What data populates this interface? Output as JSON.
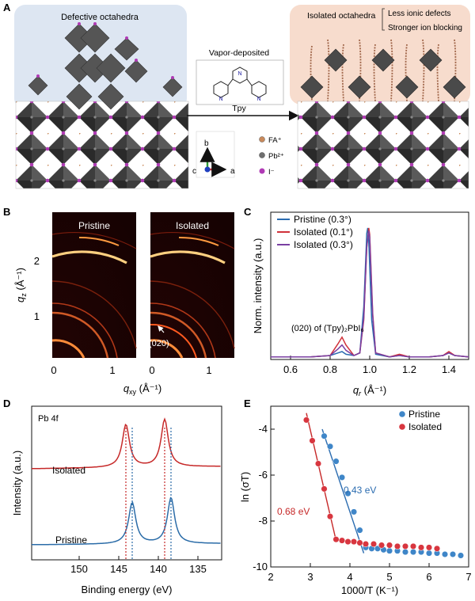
{
  "panels": {
    "A": {
      "label": "A",
      "left_title": "Defective octahedra",
      "center_title": "Vapor-deposited",
      "molecule_label": "Tpy",
      "right_title": "Isolated octahedra",
      "right_points": [
        "Less ionic defects",
        "Stronger ion blocking"
      ],
      "axes": {
        "b": "b",
        "c": "c",
        "a": "a"
      },
      "legend": [
        {
          "key": "fa",
          "label": "FA⁺",
          "color": "#c98a5b"
        },
        {
          "key": "pb",
          "label": "Pb²⁺",
          "color": "#6f6f6f"
        },
        {
          "key": "i",
          "label": "I⁻",
          "color": "#b03ab5"
        }
      ]
    },
    "B": {
      "label": "B",
      "left_title": "Pristine",
      "right_title": "Isolated",
      "peak_label": "(020)",
      "ylabel_main": "q",
      "ylabel_sub": "z",
      "ylabel_unit": " (Å⁻¹)",
      "xlabel_main": "q",
      "xlabel_sub": "xy",
      "xlabel_unit": " (Å⁻¹)",
      "y_ticks": [
        "2",
        "1"
      ],
      "x_ticks_left": [
        "0",
        "1"
      ],
      "x_ticks_right": [
        "0",
        "1"
      ]
    },
    "C": {
      "label": "C",
      "annotation": "(020) of (Tpy)₂PbI₆",
      "ylabel": "Norm. intensity (a.u.)",
      "xlabel_main": "q",
      "xlabel_sub": "r",
      "xlabel_unit": " (Å⁻¹)"
    },
    "D": {
      "label": "D",
      "inner_label": "Pb 4f",
      "ylabel": "Intensity (a.u.)",
      "xlabel": "Binding energy (eV)",
      "curve_labels": {
        "isolated": "Isolated",
        "pristine": "Pristine"
      }
    },
    "E": {
      "label": "E",
      "ylabel": "ln (σT)",
      "xlabel": "1000/T (K⁻¹)",
      "fit_labels": {
        "isolated": "0.68 eV",
        "pristine": "0.43 eV"
      }
    }
  },
  "chart_data": [
    {
      "type": "line",
      "panel": "C",
      "xlabel": "q_r (Å⁻¹)",
      "ylabel": "Norm. intensity (a.u.)",
      "xlim": [
        0.5,
        1.5
      ],
      "ylim": [
        0,
        1.12
      ],
      "x_ticks": [
        0.6,
        0.8,
        1.0,
        1.2,
        1.4
      ],
      "legend": "top-left",
      "series": [
        {
          "name": "Pristine (0.3°)",
          "color": "#2b6cb0",
          "x": [
            0.5,
            0.6,
            0.7,
            0.8,
            0.84,
            0.86,
            0.88,
            0.92,
            0.95,
            0.97,
            0.985,
            0.99,
            0.995,
            1.01,
            1.03,
            1.1,
            1.15,
            1.2,
            1.3,
            1.37,
            1.4,
            1.43,
            1.5
          ],
          "y": [
            0.02,
            0.02,
            0.02,
            0.03,
            0.05,
            0.06,
            0.04,
            0.03,
            0.05,
            0.4,
            0.96,
            1.0,
            0.9,
            0.3,
            0.04,
            0.02,
            0.03,
            0.02,
            0.02,
            0.03,
            0.05,
            0.03,
            0.02
          ]
        },
        {
          "name": "Isolated (0.1°)",
          "color": "#d0313a",
          "x": [
            0.5,
            0.6,
            0.7,
            0.8,
            0.84,
            0.86,
            0.88,
            0.92,
            0.95,
            0.97,
            0.985,
            0.995,
            1.0,
            1.015,
            1.03,
            1.1,
            1.15,
            1.2,
            1.3,
            1.37,
            1.4,
            1.43,
            1.5
          ],
          "y": [
            0.02,
            0.02,
            0.02,
            0.03,
            0.12,
            0.17,
            0.11,
            0.03,
            0.05,
            0.3,
            0.85,
            1.0,
            0.95,
            0.35,
            0.05,
            0.02,
            0.04,
            0.02,
            0.02,
            0.03,
            0.06,
            0.03,
            0.02
          ]
        },
        {
          "name": "Isolated (0.3°)",
          "color": "#7a3fa2",
          "x": [
            0.5,
            0.6,
            0.7,
            0.8,
            0.84,
            0.86,
            0.88,
            0.92,
            0.95,
            0.97,
            0.985,
            0.995,
            1.0,
            1.015,
            1.03,
            1.1,
            1.15,
            1.2,
            1.3,
            1.37,
            1.4,
            1.43,
            1.5
          ],
          "y": [
            0.02,
            0.02,
            0.02,
            0.03,
            0.08,
            0.11,
            0.07,
            0.03,
            0.05,
            0.32,
            0.86,
            0.98,
            0.93,
            0.33,
            0.05,
            0.02,
            0.03,
            0.02,
            0.02,
            0.03,
            0.05,
            0.03,
            0.02
          ]
        }
      ]
    },
    {
      "type": "line",
      "panel": "D",
      "xlabel": "Binding energy (eV)",
      "ylabel": "Intensity (a.u.)",
      "xlim": [
        156,
        132
      ],
      "x_ticks": [
        150,
        145,
        140,
        135
      ],
      "series": [
        {
          "name": "Isolated",
          "color": "#c62828",
          "peaks": [
            144.1,
            139.2
          ],
          "offset": 0.55
        },
        {
          "name": "Pristine",
          "color": "#2b6ca8",
          "peaks": [
            143.3,
            138.4
          ],
          "offset": 0.0
        }
      ],
      "reference_lines": [
        {
          "x": 144.1,
          "color": "#c62828"
        },
        {
          "x": 143.3,
          "color": "#2b6ca8"
        },
        {
          "x": 139.2,
          "color": "#c62828"
        },
        {
          "x": 138.4,
          "color": "#2b6ca8"
        }
      ]
    },
    {
      "type": "scatter",
      "panel": "E",
      "xlabel": "1000/T (K⁻¹)",
      "ylabel": "ln (σT)",
      "xlim": [
        2,
        7
      ],
      "ylim": [
        -10,
        -3
      ],
      "x_ticks": [
        2,
        3,
        4,
        5,
        6,
        7
      ],
      "y_ticks": [
        -4,
        -6,
        -8,
        -10
      ],
      "legend": "top-right",
      "series": [
        {
          "name": "Pristine",
          "color": "#3f86c8",
          "x": [
            3.35,
            3.5,
            3.65,
            3.8,
            3.95,
            4.1,
            4.25,
            4.4,
            4.55,
            4.7,
            4.85,
            5.0,
            5.2,
            5.4,
            5.6,
            5.8,
            6.0,
            6.2,
            6.4,
            6.6,
            6.8
          ],
          "y": [
            -4.3,
            -4.75,
            -5.4,
            -6.1,
            -6.8,
            -7.6,
            -8.4,
            -9.15,
            -9.2,
            -9.2,
            -9.25,
            -9.3,
            -9.3,
            -9.35,
            -9.35,
            -9.35,
            -9.4,
            -9.4,
            -9.45,
            -9.45,
            -9.5
          ]
        },
        {
          "name": "Isolated",
          "color": "#d8363f",
          "x": [
            2.9,
            3.05,
            3.2,
            3.35,
            3.5,
            3.65,
            3.8,
            3.95,
            4.1,
            4.25,
            4.4,
            4.6,
            4.8,
            5.0,
            5.2,
            5.4,
            5.6,
            5.8,
            6.0,
            6.2
          ],
          "y": [
            -3.6,
            -4.5,
            -5.5,
            -6.6,
            -7.8,
            -8.8,
            -8.85,
            -8.9,
            -8.9,
            -8.95,
            -9.0,
            -9.0,
            -9.05,
            -9.05,
            -9.1,
            -9.1,
            -9.1,
            -9.15,
            -9.15,
            -9.2
          ]
        }
      ],
      "fits": [
        {
          "name": "0.43 eV",
          "color": "#2b6cb0",
          "x": [
            3.3,
            4.35
          ],
          "y": [
            -4.0,
            -9.4
          ]
        },
        {
          "name": "0.68 eV",
          "color": "#c62828",
          "x": [
            2.9,
            3.65
          ],
          "y": [
            -3.3,
            -8.85
          ]
        }
      ]
    }
  ]
}
